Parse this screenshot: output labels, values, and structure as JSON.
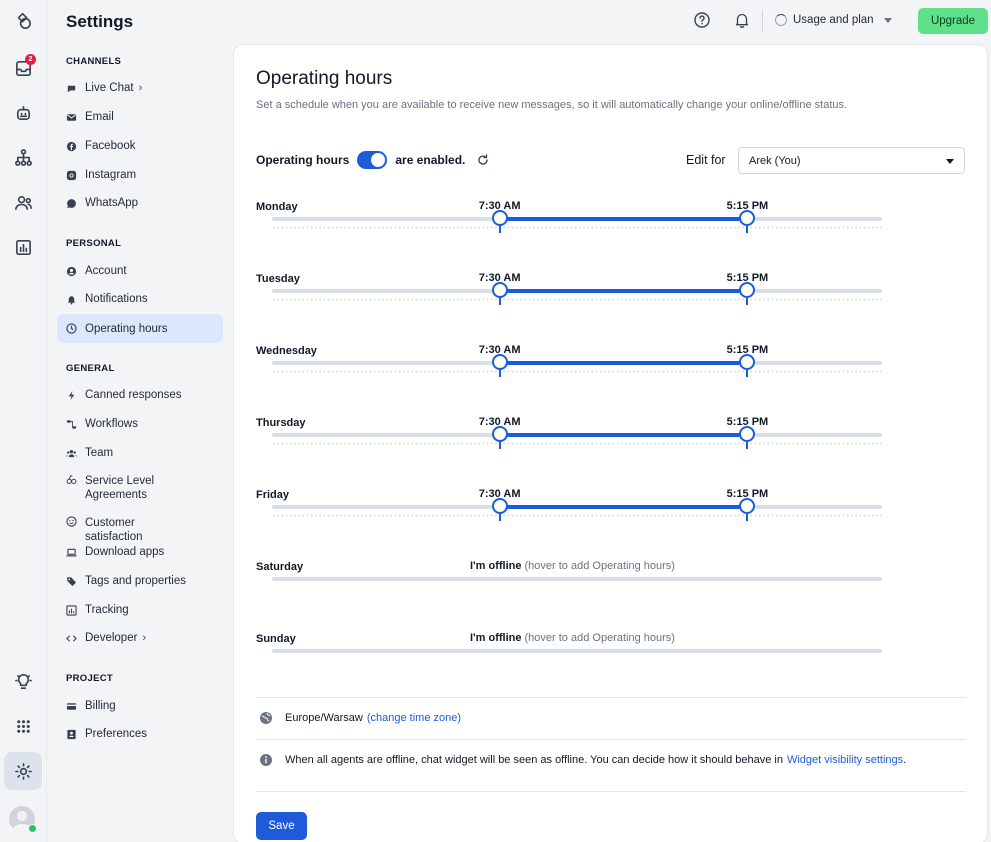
{
  "rail": {
    "inbox_badge": "2"
  },
  "nav": {
    "title": "Settings",
    "sections": [
      {
        "label": "CHANNELS",
        "items": [
          {
            "label": "Live Chat",
            "icon": "chat-bubble-icon",
            "chevron": true
          },
          {
            "label": "Email",
            "icon": "mail-icon"
          },
          {
            "label": "Facebook",
            "icon": "facebook-icon"
          },
          {
            "label": "Instagram",
            "icon": "instagram-icon"
          },
          {
            "label": "WhatsApp",
            "icon": "whatsapp-icon"
          }
        ]
      },
      {
        "label": "PERSONAL",
        "items": [
          {
            "label": "Account",
            "icon": "user-circle-icon"
          },
          {
            "label": "Notifications",
            "icon": "bell-icon"
          },
          {
            "label": "Operating hours",
            "icon": "clock-icon",
            "active": true
          }
        ]
      },
      {
        "label": "GENERAL",
        "items": [
          {
            "label": "Canned responses",
            "icon": "bolt-icon"
          },
          {
            "label": "Workflows",
            "icon": "workflow-icon"
          },
          {
            "label": "Team",
            "icon": "team-icon"
          },
          {
            "label": "Service Level Agreements",
            "icon": "sla-icon"
          },
          {
            "label": "Customer satisfaction",
            "icon": "smile-icon"
          },
          {
            "label": "Download apps",
            "icon": "laptop-icon"
          },
          {
            "label": "Tags and properties",
            "icon": "tag-icon"
          },
          {
            "label": "Tracking",
            "icon": "chart-icon"
          },
          {
            "label": "Developer",
            "icon": "code-icon",
            "chevron": true
          }
        ]
      },
      {
        "label": "PROJECT",
        "items": [
          {
            "label": "Billing",
            "icon": "credit-card-icon"
          },
          {
            "label": "Preferences",
            "icon": "preferences-icon"
          }
        ]
      }
    ]
  },
  "topbar": {
    "usage_label": "Usage and plan",
    "upgrade_label": "Upgrade"
  },
  "main": {
    "title": "Operating hours",
    "description": "Set a schedule when you are available to receive new messages, so it will automatically change your online/offline status.",
    "toggle_prefix": "Operating hours",
    "toggle_suffix": "are enabled.",
    "toggle_on": true,
    "edit_for_label": "Edit for",
    "edit_for_value": "Arek (You)",
    "days": [
      {
        "name": "Monday",
        "enabled": true,
        "start": "7:30 AM",
        "end": "5:15 PM",
        "start_hours": 7.5,
        "end_hours": 17.25
      },
      {
        "name": "Tuesday",
        "enabled": true,
        "start": "7:30 AM",
        "end": "5:15 PM",
        "start_hours": 7.5,
        "end_hours": 17.25
      },
      {
        "name": "Wednesday",
        "enabled": true,
        "start": "7:30 AM",
        "end": "5:15 PM",
        "start_hours": 7.5,
        "end_hours": 17.25
      },
      {
        "name": "Thursday",
        "enabled": true,
        "start": "7:30 AM",
        "end": "5:15 PM",
        "start_hours": 7.5,
        "end_hours": 17.25
      },
      {
        "name": "Friday",
        "enabled": true,
        "start": "7:30 AM",
        "end": "5:15 PM",
        "start_hours": 7.5,
        "end_hours": 17.25
      },
      {
        "name": "Saturday",
        "enabled": false,
        "offline_text": "I'm offline",
        "offline_hint": "(hover to add Operating hours)"
      },
      {
        "name": "Sunday",
        "enabled": false,
        "offline_text": "I'm offline",
        "offline_hint": "(hover to add Operating hours)"
      }
    ],
    "timezone": "Europe/Warsaw",
    "timezone_link": "(change time zone)",
    "offline_note": "When all agents are offline, chat widget will be seen as offline. You can decide how it should behave in",
    "offline_note_link": "Widget visibility settings",
    "offline_note_end": ".",
    "save_label": "Save"
  },
  "colors": {
    "accent": "#1d5bd8",
    "upgrade": "#5ee18a",
    "active_nav": "#dbe8fb"
  }
}
